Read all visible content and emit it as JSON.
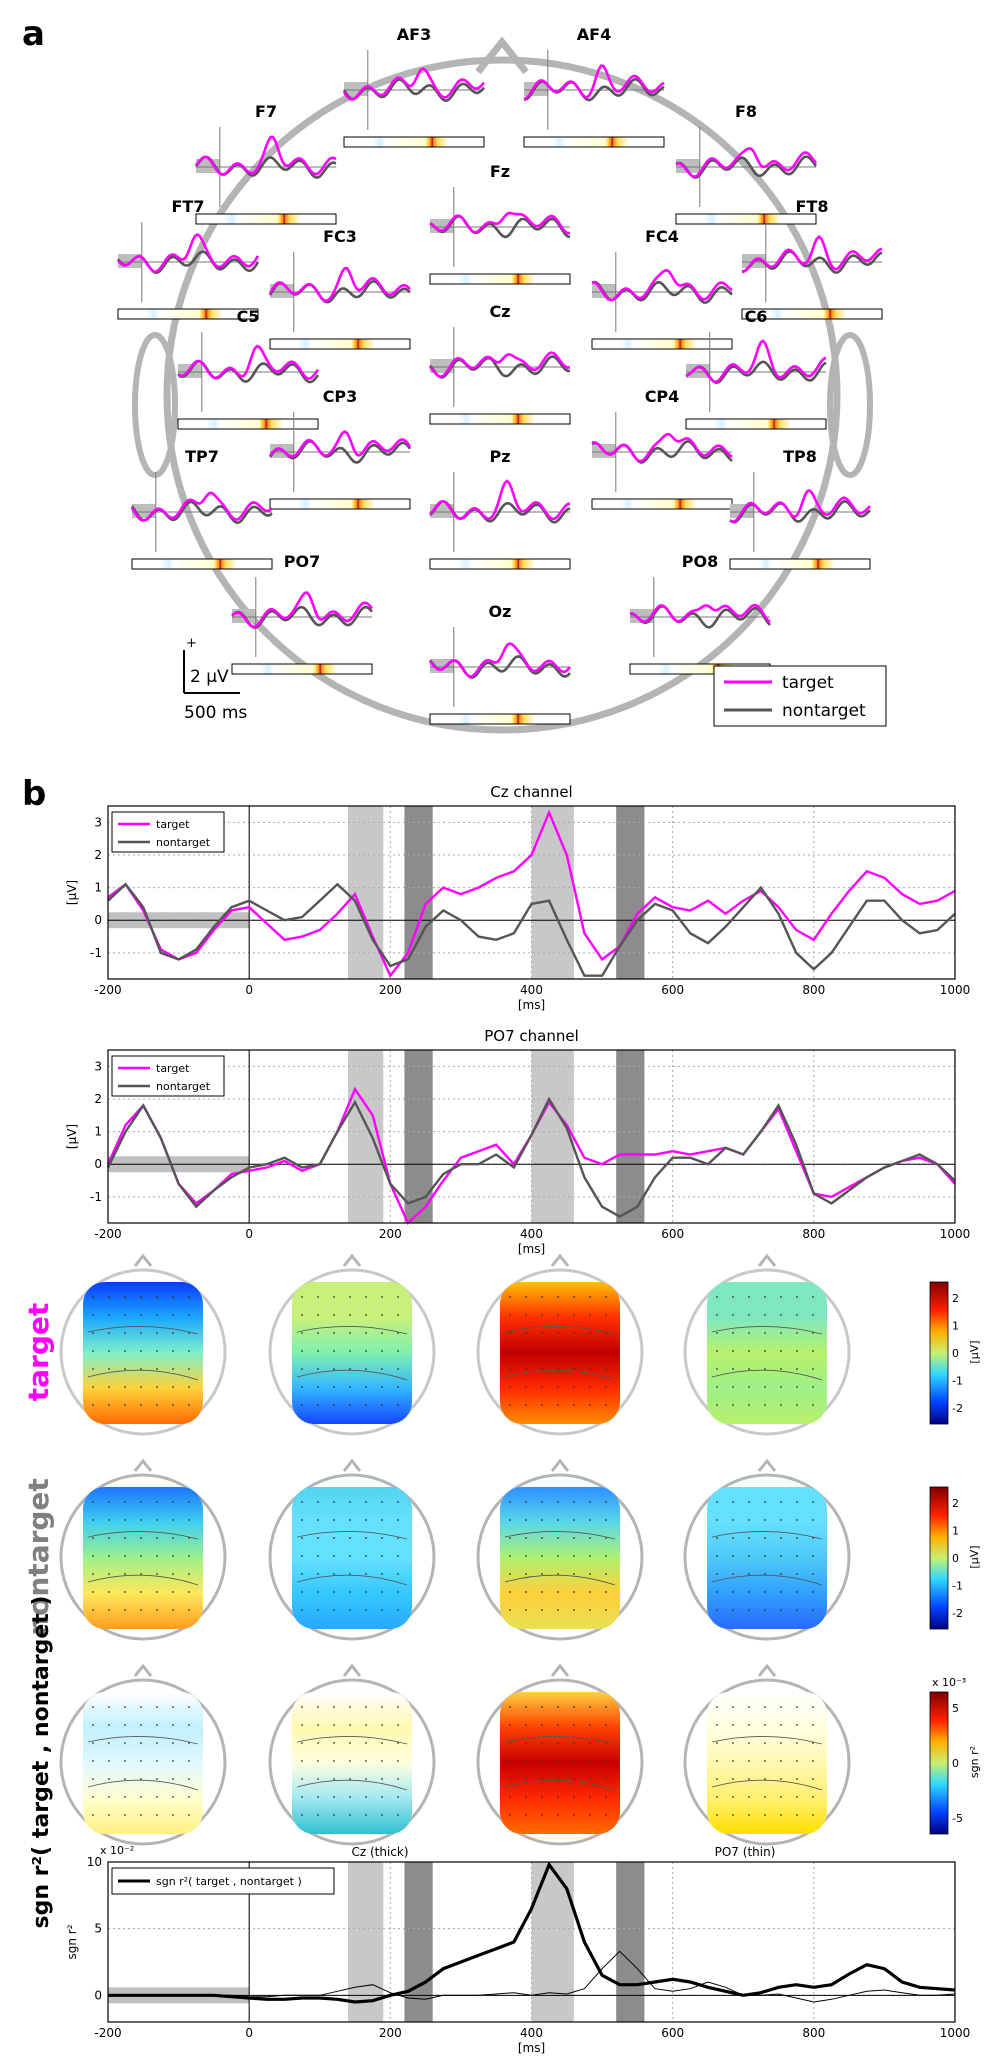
{
  "panel_labels": [
    "a",
    "b"
  ],
  "legend": {
    "target": "target",
    "nontarget": "nontarget"
  },
  "colors": {
    "target": "#ff00ff",
    "nontarget": "#555555",
    "shade_light": "#c8c8c8",
    "shade_dark": "#8c8c8c",
    "head": "#b4b4b4"
  },
  "scalebar": {
    "plus": "+",
    "amplitude": "2 µV",
    "time": "500 ms"
  },
  "electrodes": [
    {
      "name": "AF3"
    },
    {
      "name": "AF4"
    },
    {
      "name": "F7"
    },
    {
      "name": "F8"
    },
    {
      "name": "Fz"
    },
    {
      "name": "FT7"
    },
    {
      "name": "FT8"
    },
    {
      "name": "FC3"
    },
    {
      "name": "FC4"
    },
    {
      "name": "Cz"
    },
    {
      "name": "C5"
    },
    {
      "name": "C6"
    },
    {
      "name": "CP3"
    },
    {
      "name": "CP4"
    },
    {
      "name": "TP7"
    },
    {
      "name": "TP8"
    },
    {
      "name": "Pz"
    },
    {
      "name": "PO7"
    },
    {
      "name": "PO8"
    },
    {
      "name": "Oz"
    }
  ],
  "intervals_ms": [
    {
      "from": 140,
      "to": 190,
      "shade": "light"
    },
    {
      "from": 220,
      "to": 260,
      "shade": "dark"
    },
    {
      "from": 400,
      "to": 460,
      "shade": "light"
    },
    {
      "from": 520,
      "to": 560,
      "shade": "dark"
    }
  ],
  "baseline_ms": [
    -200,
    0
  ],
  "row_labels": {
    "target": "target",
    "nontarget": "nontarget",
    "sgn": "sgn r²( target , nontarget )"
  },
  "colorbars": [
    {
      "ticks": [
        "2",
        "1",
        "0",
        "-1",
        "-2"
      ],
      "unit": "[µV]",
      "exponent": ""
    },
    {
      "ticks": [
        "2",
        "1",
        "0",
        "-1",
        "-2"
      ],
      "unit": "[µV]",
      "exponent": ""
    },
    {
      "ticks": [
        "5",
        "0",
        "-5"
      ],
      "unit": "sgn r²",
      "exponent": "x 10⁻³"
    }
  ],
  "chart_data": [
    {
      "type": "line",
      "title": "Cz channel",
      "xlabel": "[ms]",
      "ylabel": "[µV]",
      "xlim": [
        -200,
        1000
      ],
      "ylim": [
        -1.8,
        3.5
      ],
      "xticks": [
        "-200",
        "0",
        "200",
        "400",
        "600",
        "800",
        "1000"
      ],
      "yticks": [
        "3",
        "2",
        "1",
        "0",
        "-1"
      ],
      "x": [
        -200,
        -175,
        -150,
        -125,
        -100,
        -75,
        -50,
        -25,
        0,
        25,
        50,
        75,
        100,
        125,
        150,
        175,
        200,
        225,
        250,
        275,
        300,
        325,
        350,
        375,
        400,
        425,
        450,
        475,
        500,
        525,
        550,
        575,
        600,
        625,
        650,
        675,
        700,
        725,
        750,
        775,
        800,
        825,
        850,
        875,
        900,
        925,
        950,
        975,
        1000
      ],
      "series": [
        {
          "name": "target",
          "values": [
            0.7,
            1.1,
            0.3,
            -0.9,
            -1.2,
            -1.0,
            -0.3,
            0.3,
            0.4,
            -0.1,
            -0.6,
            -0.5,
            -0.3,
            0.2,
            0.8,
            -0.5,
            -1.7,
            -1.0,
            0.5,
            1.0,
            0.8,
            1.0,
            1.3,
            1.5,
            2.0,
            3.3,
            2.0,
            -0.4,
            -1.2,
            -0.8,
            0.2,
            0.7,
            0.4,
            0.3,
            0.6,
            0.2,
            0.6,
            0.9,
            0.4,
            -0.3,
            -0.6,
            0.2,
            0.9,
            1.5,
            1.3,
            0.8,
            0.5,
            0.6,
            0.9
          ]
        },
        {
          "name": "nontarget",
          "values": [
            0.6,
            1.1,
            0.4,
            -1.0,
            -1.2,
            -0.9,
            -0.2,
            0.4,
            0.6,
            0.3,
            0.0,
            0.1,
            0.6,
            1.1,
            0.6,
            -0.6,
            -1.4,
            -1.2,
            -0.2,
            0.3,
            0.0,
            -0.5,
            -0.6,
            -0.4,
            0.5,
            0.6,
            -0.6,
            -1.7,
            -1.7,
            -0.8,
            0.0,
            0.5,
            0.3,
            -0.4,
            -0.7,
            -0.2,
            0.4,
            1.0,
            0.2,
            -1.0,
            -1.5,
            -1.0,
            -0.2,
            0.6,
            0.6,
            0.0,
            -0.4,
            -0.3,
            0.2
          ]
        }
      ]
    },
    {
      "type": "line",
      "title": "PO7 channel",
      "xlabel": "[ms]",
      "ylabel": "[µV]",
      "xlim": [
        -200,
        1000
      ],
      "ylim": [
        -1.8,
        3.5
      ],
      "xticks": [
        "-200",
        "0",
        "200",
        "400",
        "600",
        "800",
        "1000"
      ],
      "yticks": [
        "3",
        "2",
        "1",
        "0",
        "-1"
      ],
      "x": [
        -200,
        -175,
        -150,
        -125,
        -100,
        -75,
        -50,
        -25,
        0,
        25,
        50,
        75,
        100,
        125,
        150,
        175,
        200,
        225,
        250,
        275,
        300,
        325,
        350,
        375,
        400,
        425,
        450,
        475,
        500,
        525,
        550,
        575,
        600,
        625,
        650,
        675,
        700,
        725,
        750,
        775,
        800,
        825,
        850,
        875,
        900,
        925,
        950,
        975,
        1000
      ],
      "series": [
        {
          "name": "target",
          "values": [
            0.0,
            1.2,
            1.8,
            0.8,
            -0.6,
            -1.2,
            -0.8,
            -0.3,
            -0.2,
            -0.1,
            0.1,
            -0.2,
            0.0,
            1.0,
            2.3,
            1.5,
            -0.6,
            -1.8,
            -1.3,
            -0.5,
            0.2,
            0.4,
            0.6,
            0.0,
            0.9,
            1.9,
            1.2,
            0.2,
            0.0,
            0.3,
            0.3,
            0.3,
            0.4,
            0.3,
            0.4,
            0.5,
            0.3,
            1.0,
            1.7,
            0.4,
            -0.9,
            -1.0,
            -0.7,
            -0.4,
            -0.1,
            0.1,
            0.2,
            0.0,
            -0.6
          ]
        },
        {
          "name": "nontarget",
          "values": [
            -0.1,
            1.0,
            1.8,
            0.8,
            -0.6,
            -1.3,
            -0.8,
            -0.4,
            -0.1,
            0.0,
            0.2,
            -0.1,
            0.0,
            1.0,
            1.9,
            0.8,
            -0.6,
            -1.2,
            -1.0,
            -0.3,
            0.0,
            0.0,
            0.3,
            -0.1,
            0.9,
            2.0,
            1.1,
            -0.4,
            -1.3,
            -1.6,
            -1.3,
            -0.4,
            0.2,
            0.2,
            0.0,
            0.5,
            0.3,
            1.0,
            1.8,
            0.6,
            -0.9,
            -1.2,
            -0.8,
            -0.4,
            -0.1,
            0.1,
            0.3,
            0.0,
            -0.5
          ]
        }
      ]
    },
    {
      "type": "line",
      "title": "sgn r²( target , nontarget )",
      "subtitles": [
        "Cz (thick)",
        "PO7 (thin)"
      ],
      "exponent": "x 10⁻²",
      "xlabel": "[ms]",
      "ylabel": "sgn r²",
      "xlim": [
        -200,
        1000
      ],
      "ylim": [
        -2,
        10
      ],
      "xticks": [
        "-200",
        "0",
        "200",
        "400",
        "600",
        "800",
        "1000"
      ],
      "yticks": [
        "10",
        "5",
        "0"
      ],
      "legend": [
        "sgn r²( target , nontarget )"
      ],
      "x": [
        -200,
        -175,
        -150,
        -125,
        -100,
        -75,
        -50,
        -25,
        0,
        25,
        50,
        75,
        100,
        125,
        150,
        175,
        200,
        225,
        250,
        275,
        300,
        325,
        350,
        375,
        400,
        425,
        450,
        475,
        500,
        525,
        550,
        575,
        600,
        625,
        650,
        675,
        700,
        725,
        750,
        775,
        800,
        825,
        850,
        875,
        900,
        925,
        950,
        975,
        1000
      ],
      "series": [
        {
          "name": "Cz (thick)",
          "values": [
            0.0,
            0.0,
            0.0,
            0.0,
            0.0,
            0.0,
            0.0,
            -0.1,
            -0.2,
            -0.3,
            -0.3,
            -0.2,
            -0.2,
            -0.3,
            -0.5,
            -0.4,
            0.0,
            0.3,
            1.0,
            2.0,
            2.5,
            3.0,
            3.5,
            4.0,
            6.5,
            9.8,
            8.0,
            4.0,
            1.5,
            0.8,
            0.8,
            1.0,
            1.2,
            1.0,
            0.6,
            0.3,
            0.0,
            0.2,
            0.6,
            0.8,
            0.6,
            0.8,
            1.6,
            2.3,
            2.0,
            1.0,
            0.6,
            0.5,
            0.4
          ]
        },
        {
          "name": "PO7 (thin)",
          "values": [
            0.0,
            0.0,
            0.0,
            0.0,
            0.0,
            0.0,
            0.0,
            0.0,
            -0.1,
            -0.1,
            0.0,
            0.0,
            0.0,
            0.3,
            0.6,
            0.8,
            0.2,
            -0.2,
            -0.3,
            0.0,
            0.0,
            0.0,
            0.1,
            0.2,
            0.0,
            0.2,
            0.1,
            0.5,
            2.0,
            3.3,
            2.0,
            0.5,
            0.3,
            0.5,
            1.0,
            0.6,
            0.0,
            0.0,
            0.1,
            -0.2,
            -0.5,
            -0.3,
            0.0,
            0.3,
            0.4,
            0.2,
            0.0,
            0.0,
            0.1
          ]
        }
      ]
    }
  ]
}
